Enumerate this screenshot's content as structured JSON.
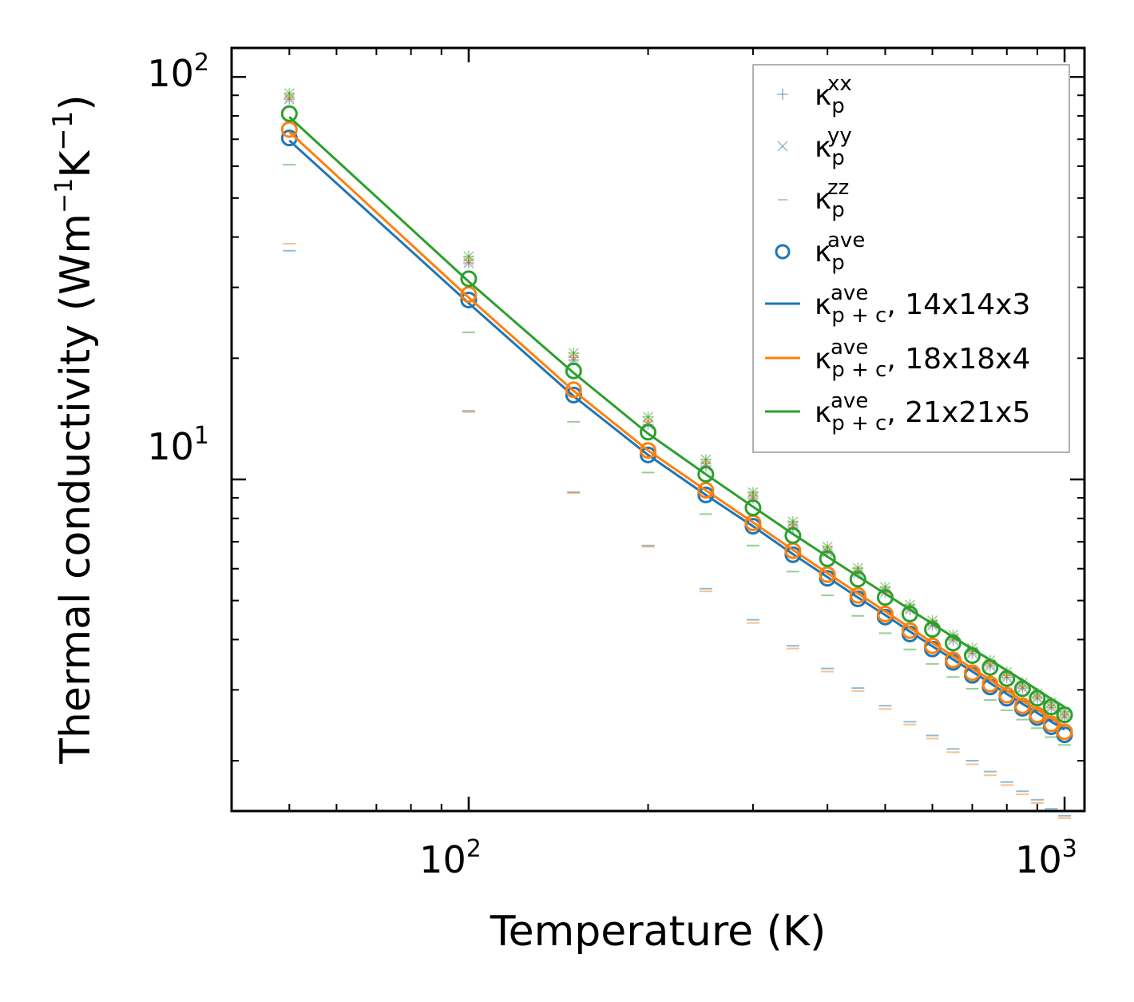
{
  "chart_data": {
    "type": "line",
    "scale": {
      "x": "log",
      "y": "log"
    },
    "xlabel": "Temperature (K)",
    "ylabel": "Thermal conductivity (Wm⁻¹K⁻¹)",
    "ylabel_parts": {
      "main": "Thermal conductivity (Wm",
      "exp1": "−1",
      "mid": "K",
      "exp2": "−1",
      "end": ")"
    },
    "xlim": [
      40,
      1080
    ],
    "ylim": [
      1.5,
      118
    ],
    "xticks": [
      {
        "base": "10",
        "exp": "2",
        "value": 100
      },
      {
        "base": "10",
        "exp": "3",
        "value": 1000
      }
    ],
    "yticks": [
      {
        "base": "10",
        "exp": "1",
        "value": 10
      },
      {
        "base": "10",
        "exp": "2",
        "value": 100
      }
    ],
    "temperatures": [
      50,
      100,
      150,
      200,
      250,
      300,
      350,
      400,
      450,
      500,
      550,
      600,
      650,
      700,
      750,
      800,
      850,
      900,
      950,
      1000
    ],
    "series": [
      {
        "name": "14x14x3",
        "color": "#1f77b4",
        "kappa_xx": [
          88,
          34.5,
          19.8,
          13.7,
          10.8,
          8.98,
          7.6,
          6.6,
          5.85,
          5.24,
          4.75,
          4.34,
          3.99,
          3.7,
          3.44,
          3.22,
          3.03,
          2.86,
          2.71,
          2.57
        ],
        "kappa_yy": [
          88,
          34.5,
          19.8,
          13.7,
          10.8,
          8.98,
          7.6,
          6.6,
          5.85,
          5.24,
          4.75,
          4.34,
          3.99,
          3.7,
          3.44,
          3.22,
          3.03,
          2.86,
          2.71,
          2.57
        ],
        "kappa_zz": [
          37.0,
          14.8,
          9.3,
          6.85,
          5.35,
          4.48,
          3.86,
          3.39,
          3.03,
          2.74,
          2.5,
          2.31,
          2.14,
          2.0,
          1.88,
          1.77,
          1.68,
          1.6,
          1.52,
          1.46
        ],
        "kappa_ave": [
          70.5,
          27.9,
          16.2,
          11.5,
          9.15,
          7.65,
          6.5,
          5.68,
          5.05,
          4.55,
          4.13,
          3.79,
          3.51,
          3.26,
          3.05,
          2.86,
          2.7,
          2.56,
          2.43,
          2.32
        ],
        "kappa_pc": [
          69.5,
          27.4,
          16.1,
          11.5,
          9.15,
          7.65,
          6.52,
          5.72,
          5.09,
          4.6,
          4.19,
          3.85,
          3.57,
          3.33,
          3.12,
          2.93,
          2.77,
          2.63,
          2.5,
          2.39
        ]
      },
      {
        "name": "18x18x4",
        "color": "#ff7f0e",
        "kappa_xx": [
          89,
          35.0,
          20.1,
          13.9,
          10.95,
          9.1,
          7.7,
          6.68,
          5.92,
          5.3,
          4.8,
          4.39,
          4.04,
          3.74,
          3.48,
          3.26,
          3.06,
          2.89,
          2.74,
          2.6
        ],
        "kappa_yy": [
          89,
          35.0,
          20.1,
          13.9,
          10.95,
          9.1,
          7.7,
          6.68,
          5.92,
          5.3,
          4.8,
          4.39,
          4.04,
          3.74,
          3.48,
          3.26,
          3.06,
          2.89,
          2.74,
          2.6
        ],
        "kappa_zz": [
          38.5,
          14.7,
          9.25,
          6.8,
          5.27,
          4.4,
          3.8,
          3.33,
          2.98,
          2.69,
          2.46,
          2.27,
          2.1,
          1.96,
          1.84,
          1.74,
          1.65,
          1.57,
          1.5,
          1.44
        ],
        "kappa_ave": [
          74.0,
          28.8,
          16.7,
          11.8,
          9.4,
          7.8,
          6.65,
          5.8,
          5.15,
          4.63,
          4.21,
          3.86,
          3.56,
          3.31,
          3.1,
          2.91,
          2.74,
          2.6,
          2.47,
          2.36
        ],
        "kappa_pc": [
          73.0,
          28.3,
          16.6,
          11.8,
          9.4,
          7.82,
          6.68,
          5.85,
          5.21,
          4.7,
          4.28,
          3.93,
          3.64,
          3.39,
          3.18,
          2.99,
          2.82,
          2.68,
          2.55,
          2.43
        ]
      },
      {
        "name": "21x21x5",
        "color": "#2ca02c",
        "kappa_xx": [
          91,
          35.8,
          20.6,
          14.3,
          11.2,
          9.28,
          7.85,
          6.8,
          6.02,
          5.4,
          4.88,
          4.46,
          4.11,
          3.81,
          3.55,
          3.32,
          3.12,
          2.94,
          2.79,
          2.65
        ],
        "kappa_yy": [
          91,
          35.8,
          20.6,
          14.3,
          11.2,
          9.28,
          7.85,
          6.8,
          6.02,
          5.4,
          4.88,
          4.46,
          4.11,
          3.81,
          3.55,
          3.32,
          3.12,
          2.94,
          2.79,
          2.65
        ],
        "kappa_zz": [
          60.5,
          23.2,
          13.9,
          10.4,
          8.2,
          6.85,
          5.9,
          5.15,
          4.58,
          4.15,
          3.78,
          3.48,
          3.23,
          3.02,
          2.83,
          2.67,
          2.53,
          2.41,
          2.29,
          2.19
        ],
        "kappa_ave": [
          81.0,
          31.5,
          18.6,
          13.1,
          10.3,
          8.5,
          7.25,
          6.35,
          5.65,
          5.09,
          4.63,
          4.24,
          3.92,
          3.65,
          3.41,
          3.2,
          3.02,
          2.86,
          2.72,
          2.6
        ],
        "kappa_pc": [
          79.5,
          31.0,
          18.4,
          13.0,
          10.3,
          8.55,
          7.32,
          6.43,
          5.74,
          5.2,
          4.75,
          4.38,
          4.06,
          3.79,
          3.56,
          3.35,
          3.17,
          3.0,
          2.85,
          2.72
        ]
      }
    ],
    "legend": {
      "position": "top-right",
      "entries": [
        {
          "symbol": "+",
          "base": "κ",
          "sub": "p",
          "sup": "xx",
          "suffix": ""
        },
        {
          "symbol": "×",
          "base": "κ",
          "sub": "p",
          "sup": "yy",
          "suffix": ""
        },
        {
          "symbol": "–",
          "base": "κ",
          "sub": "p",
          "sup": "zz",
          "suffix": ""
        },
        {
          "symbol": "o",
          "base": "κ",
          "sub": "p",
          "sup": "ave",
          "suffix": ""
        },
        {
          "symbol": "line",
          "base": "κ",
          "sub": "p + c",
          "sup": "ave",
          "suffix": ", 14x14x3"
        },
        {
          "symbol": "line",
          "base": "κ",
          "sub": "p + c",
          "sup": "ave",
          "suffix": ", 18x18x4"
        },
        {
          "symbol": "line",
          "base": "κ",
          "sub": "p + c",
          "sup": "ave",
          "suffix": ", 21x21x5"
        }
      ]
    }
  }
}
